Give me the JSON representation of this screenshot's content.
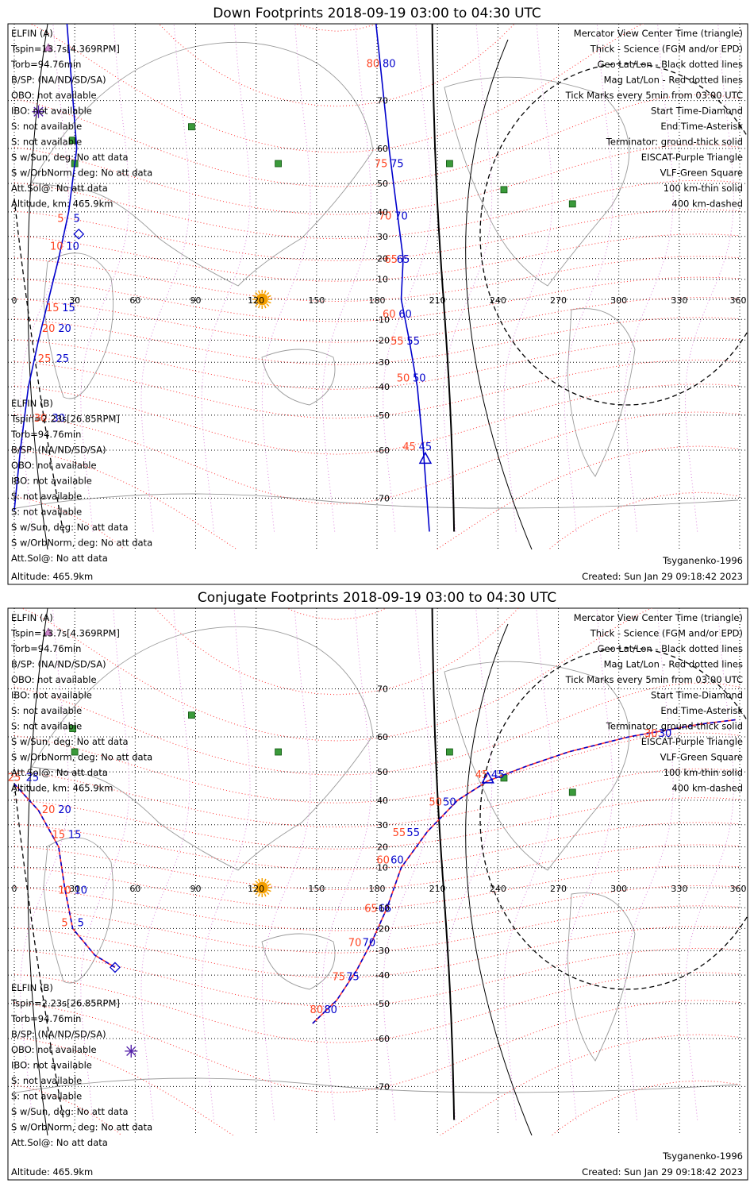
{
  "chart_data": [
    {
      "type": "line",
      "title": "Down Footprints 2018-09-19 03:00 to 04:30 UTC",
      "projection": "mercator",
      "xlim": [
        0,
        360
      ],
      "x_ticks": [
        "0",
        "30",
        "60",
        "90",
        "120",
        "150",
        "180",
        "210",
        "240",
        "270",
        "300",
        "330",
        "360"
      ],
      "y_ticks": [
        {
          "lat": 70,
          "label": "70"
        },
        {
          "lat": 60,
          "label": "60"
        },
        {
          "lat": 50,
          "label": "50"
        },
        {
          "lat": 40,
          "label": "40"
        },
        {
          "lat": 30,
          "label": "30"
        },
        {
          "lat": 20,
          "label": "20"
        },
        {
          "lat": 10,
          "label": "10"
        },
        {
          "lat": -10,
          "label": "-10"
        },
        {
          "lat": -20,
          "label": "-20"
        },
        {
          "lat": -30,
          "label": "-30"
        },
        {
          "lat": -40,
          "label": "-40"
        },
        {
          "lat": -50,
          "label": "-50"
        },
        {
          "lat": -60,
          "label": "-60"
        },
        {
          "lat": -70,
          "label": "-70"
        }
      ],
      "legend_left_a": [
        {
          "text": "ELFIN (A)",
          "color": "#0000cc"
        },
        {
          "text": "Tspin=13.7s[4.369RPM]"
        },
        {
          "text": "Torb=94.76min"
        },
        {
          "text": "B/SP: (NA/ND/SD/SA)"
        },
        {
          "text": "OBO: not available"
        },
        {
          "text": "IBO: not available"
        },
        {
          "text": "S: not available"
        },
        {
          "text": "S: not available"
        },
        {
          "text": "S w/Sun, deg: No att data"
        },
        {
          "text": "S w/OrbNorm, deg: No att data"
        },
        {
          "text": "Att.Sol@: No att data"
        },
        {
          "text": "Altitude, km: 465.9km"
        }
      ],
      "legend_left_b": [
        {
          "text": "ELFIN (B)",
          "color": "#ff4422"
        },
        {
          "text": "Tspin=2.23s[26.85RPM]"
        },
        {
          "text": "Torb=94.76min"
        },
        {
          "text": "B/SP: (NA/ND/SD/SA)"
        },
        {
          "text": "OBO: not available"
        },
        {
          "text": "IBO: not available"
        },
        {
          "text": "S: not available"
        },
        {
          "text": "S: not available"
        },
        {
          "text": "S w/Sun, deg: No att data"
        },
        {
          "text": "S w/OrbNorm, deg: No att data"
        },
        {
          "text": "Att.Sol@: No att data"
        },
        {
          "text": "Altitude: 465.9km"
        }
      ],
      "legend_right": [
        {
          "text": "Mercator View Center Time (triangle)",
          "color": "#000000"
        },
        {
          "text": "Thick - Science (FGM and/or EPD)",
          "color": "#000000"
        },
        {
          "text": "Geo Lat/Lon - Black dotted lines",
          "color": "#000000"
        },
        {
          "text": "Mag Lat/Lon - Red dotted lines",
          "color": "#ff0000"
        },
        {
          "text": "Tick Marks every 5min from 03:00 UTC",
          "color": "#000000"
        },
        {
          "text": "Start Time-Diamond",
          "color": "#000000"
        },
        {
          "text": "End Time-Asterisk",
          "color": "#000000"
        },
        {
          "text": "Terminator: ground-thick solid",
          "color": "#000000"
        },
        {
          "text": "EISCAT-Purple Triangle",
          "color": "#cc88cc"
        },
        {
          "text": "VLF-Green Square",
          "color": "#44aa44"
        },
        {
          "text": "100 km-thin solid",
          "color": "#000000"
        },
        {
          "text": "400 km-dashed",
          "color": "#000000"
        }
      ],
      "footer_left": "Altitude: 465.9km",
      "footer_right": "Created: Sun Jan 29 09:18:42 2023",
      "model": "Tsyganenko-1996",
      "series": [
        {
          "name": "ELFIN (A)",
          "color": "#0000cc",
          "style": "solid",
          "points": [
            [
              25,
              82
            ],
            [
              31,
              60
            ],
            [
              27,
              40
            ],
            [
              22,
              20
            ],
            [
              17,
              0
            ],
            [
              12,
              -20
            ],
            [
              7,
              -40
            ],
            [
              3,
              -60
            ],
            [
              0,
              -72
            ]
          ]
        },
        {
          "name": "ELFIN (A)",
          "color": "#0000cc",
          "style": "solid",
          "points": [
            [
              178,
              82
            ],
            [
              186,
              60
            ],
            [
              190,
              40
            ],
            [
              193,
              20
            ],
            [
              192,
              0
            ],
            [
              196,
              -20
            ],
            [
              200,
              -40
            ],
            [
              203,
              -60
            ],
            [
              206,
              -75
            ]
          ]
        }
      ],
      "tick_labels_a": [
        {
          "v": "80",
          "lon": 186,
          "lat": 75
        },
        {
          "v": "75",
          "lon": 190,
          "lat": 55
        },
        {
          "v": "70",
          "lon": 192,
          "lat": 37
        },
        {
          "v": "65",
          "lon": 193,
          "lat": 18
        },
        {
          "v": "60",
          "lon": 194,
          "lat": -9
        },
        {
          "v": "55",
          "lon": 198,
          "lat": -22
        },
        {
          "v": "50",
          "lon": 201,
          "lat": -38
        },
        {
          "v": "45",
          "lon": 204,
          "lat": -60
        },
        {
          "v": "5",
          "lon": 31,
          "lat": 36
        },
        {
          "v": "10",
          "lon": 29,
          "lat": 24
        },
        {
          "v": "15",
          "lon": 27,
          "lat": -6
        },
        {
          "v": "20",
          "lon": 25,
          "lat": -16
        },
        {
          "v": "25",
          "lon": 24,
          "lat": -30
        },
        {
          "v": "30",
          "lon": 22,
          "lat": -52
        }
      ],
      "tick_labels_b": [
        {
          "v": "80",
          "lon": 178,
          "lat": 75
        },
        {
          "v": "75",
          "lon": 182,
          "lat": 55
        },
        {
          "v": "70",
          "lon": 184,
          "lat": 37
        },
        {
          "v": "65",
          "lon": 187,
          "lat": 18
        },
        {
          "v": "60",
          "lon": 186,
          "lat": -9
        },
        {
          "v": "55",
          "lon": 190,
          "lat": -22
        },
        {
          "v": "50",
          "lon": 193,
          "lat": -38
        },
        {
          "v": "45",
          "lon": 196,
          "lat": -60
        },
        {
          "v": "5",
          "lon": 23,
          "lat": 36
        },
        {
          "v": "10",
          "lon": 21,
          "lat": 24
        },
        {
          "v": "15",
          "lon": 19,
          "lat": -6
        },
        {
          "v": "20",
          "lon": 17,
          "lat": -16
        },
        {
          "v": "25",
          "lon": 15,
          "lat": -30
        },
        {
          "v": "30",
          "lon": 13,
          "lat": -52
        }
      ],
      "vlf_sites": [
        [
          88,
          65
        ],
        [
          29,
          62
        ],
        [
          30,
          56
        ],
        [
          131,
          56
        ],
        [
          216,
          56
        ],
        [
          243,
          48
        ],
        [
          277,
          43
        ]
      ],
      "sun": [
        123,
        0
      ],
      "center_triangle": [
        204,
        -62
      ],
      "start_diamond": [
        32,
        31
      ],
      "end_asterisk": [
        12,
        68
      ]
    },
    {
      "type": "line",
      "title": "Conjugate Footprints 2018-09-19 03:00 to 04:30 UTC",
      "projection": "mercator",
      "xlim": [
        0,
        360
      ],
      "x_ticks": [
        "0",
        "30",
        "60",
        "90",
        "120",
        "150",
        "180",
        "210",
        "240",
        "270",
        "300",
        "330",
        "360"
      ],
      "y_ticks": [
        {
          "lat": 70,
          "label": "70"
        },
        {
          "lat": 60,
          "label": "60"
        },
        {
          "lat": 50,
          "label": "50"
        },
        {
          "lat": 40,
          "label": "40"
        },
        {
          "lat": 30,
          "label": "30"
        },
        {
          "lat": 20,
          "label": "20"
        },
        {
          "lat": 10,
          "label": "10"
        },
        {
          "lat": -10,
          "label": "-10"
        },
        {
          "lat": -20,
          "label": "-20"
        },
        {
          "lat": -30,
          "label": "-30"
        },
        {
          "lat": -40,
          "label": "-40"
        },
        {
          "lat": -50,
          "label": "-50"
        },
        {
          "lat": -60,
          "label": "-60"
        },
        {
          "lat": -70,
          "label": "-70"
        }
      ],
      "legend_left_a": [
        {
          "text": "ELFIN (A)",
          "color": "#0000cc"
        },
        {
          "text": "Tspin=13.7s[4.369RPM]"
        },
        {
          "text": "Torb=94.76min"
        },
        {
          "text": "B/SP: (NA/ND/SD/SA)"
        },
        {
          "text": "OBO: not available"
        },
        {
          "text": "IBO: not available"
        },
        {
          "text": "S: not available"
        },
        {
          "text": "S: not available"
        },
        {
          "text": "S w/Sun, deg: No att data"
        },
        {
          "text": "S w/OrbNorm, deg: No att data"
        },
        {
          "text": "Att.Sol@: No att data"
        },
        {
          "text": "Altitude, km: 465.9km"
        }
      ],
      "legend_left_b": [
        {
          "text": "ELFIN (B)",
          "color": "#ff4422"
        },
        {
          "text": "Tspin=2.23s[26.85RPM]"
        },
        {
          "text": "Torb=94.76min"
        },
        {
          "text": "B/SP: (NA/ND/SD/SA)"
        },
        {
          "text": "OBO: not available"
        },
        {
          "text": "IBO: not available"
        },
        {
          "text": "S: not available"
        },
        {
          "text": "S: not available"
        },
        {
          "text": "S w/Sun, deg: No att data"
        },
        {
          "text": "S w/OrbNorm, deg: No att data"
        },
        {
          "text": "Att.Sol@: No att data"
        },
        {
          "text": "Altitude: 465.9km"
        }
      ],
      "legend_right": [
        {
          "text": "Mercator View Center Time (triangle)",
          "color": "#000000"
        },
        {
          "text": "Thick - Science (FGM and/or EPD)",
          "color": "#000000"
        },
        {
          "text": "Geo Lat/Lon - Black dotted lines",
          "color": "#000000"
        },
        {
          "text": "Mag Lat/Lon - Red dotted lines",
          "color": "#ff0000"
        },
        {
          "text": "Tick Marks every 5min from 03:00 UTC",
          "color": "#000000"
        },
        {
          "text": "Start Time-Diamond",
          "color": "#000000"
        },
        {
          "text": "End Time-Asterisk",
          "color": "#000000"
        },
        {
          "text": "Terminator: ground-thick solid",
          "color": "#000000"
        },
        {
          "text": "EISCAT-Purple Triangle",
          "color": "#cc88cc"
        },
        {
          "text": "VLF-Green Square",
          "color": "#44aa44"
        },
        {
          "text": "100 km-thin solid",
          "color": "#000000"
        },
        {
          "text": "400 km-dashed",
          "color": "#000000"
        }
      ],
      "footer_left": "Altitude: 465.9km",
      "footer_right": "Created: Sun Jan 29 09:18:42 2023",
      "model": "Tsyganenko-1996",
      "series": [
        {
          "name": "ELFIN (A)",
          "color": "#0000cc",
          "style": "dashed",
          "points": [
            [
              0,
              46
            ],
            [
              12,
              36
            ],
            [
              22,
              20
            ],
            [
              25,
              0
            ],
            [
              29,
              -20
            ],
            [
              40,
              -32
            ],
            [
              50,
              -37
            ]
          ]
        },
        {
          "name": "ELFIN (A)",
          "color": "#0000cc",
          "style": "dashed",
          "points": [
            [
              148,
              -56
            ],
            [
              160,
              -49
            ],
            [
              170,
              -38
            ],
            [
              178,
              -25
            ],
            [
              185,
              -10
            ],
            [
              192,
              10
            ],
            [
              205,
              27
            ],
            [
              220,
              40
            ],
            [
              235,
              47
            ],
            [
              255,
              52
            ],
            [
              275,
              56
            ],
            [
              305,
              60
            ],
            [
              340,
              63
            ],
            [
              358,
              64
            ]
          ]
        }
      ],
      "tick_labels_a": [
        {
          "v": "80",
          "lon": 157,
          "lat": -53
        },
        {
          "v": "75",
          "lon": 168,
          "lat": -42
        },
        {
          "v": "70",
          "lon": 176,
          "lat": -28
        },
        {
          "v": "65",
          "lon": 184,
          "lat": -12
        },
        {
          "v": "60",
          "lon": 190,
          "lat": 12
        },
        {
          "v": "55",
          "lon": 198,
          "lat": 25
        },
        {
          "v": "50",
          "lon": 216,
          "lat": 38
        },
        {
          "v": "45",
          "lon": 240,
          "lat": 48
        },
        {
          "v": "30",
          "lon": 323,
          "lat": 60
        },
        {
          "v": "25",
          "lon": 9,
          "lat": 47
        },
        {
          "v": "20",
          "lon": 25,
          "lat": 35
        },
        {
          "v": "15",
          "lon": 30,
          "lat": 24
        },
        {
          "v": "10",
          "lon": 33,
          "lat": -3
        },
        {
          "v": "5",
          "lon": 33,
          "lat": -19
        }
      ],
      "tick_labels_b": [
        {
          "v": "80",
          "lon": 150,
          "lat": -53
        },
        {
          "v": "75",
          "lon": 161,
          "lat": -42
        },
        {
          "v": "70",
          "lon": 169,
          "lat": -28
        },
        {
          "v": "65",
          "lon": 177,
          "lat": -12
        },
        {
          "v": "60",
          "lon": 183,
          "lat": 12
        },
        {
          "v": "55",
          "lon": 191,
          "lat": 25
        },
        {
          "v": "50",
          "lon": 209,
          "lat": 38
        },
        {
          "v": "45",
          "lon": 232,
          "lat": 48
        },
        {
          "v": "30",
          "lon": 316,
          "lat": 60
        },
        {
          "v": "25",
          "lon": 0,
          "lat": 47
        },
        {
          "v": "20",
          "lon": 17,
          "lat": 35
        },
        {
          "v": "15",
          "lon": 22,
          "lat": 24
        },
        {
          "v": "10",
          "lon": 25,
          "lat": -3
        },
        {
          "v": "5",
          "lon": 25,
          "lat": -19
        }
      ],
      "vlf_sites": [
        [
          88,
          65
        ],
        [
          29,
          62
        ],
        [
          30,
          56
        ],
        [
          131,
          56
        ],
        [
          216,
          56
        ],
        [
          243,
          48
        ],
        [
          277,
          43
        ]
      ],
      "sun": [
        123,
        0
      ],
      "center_triangle": [
        235,
        48
      ],
      "start_diamond": [
        50,
        -37
      ],
      "end_asterisk": [
        58,
        -63
      ]
    }
  ]
}
